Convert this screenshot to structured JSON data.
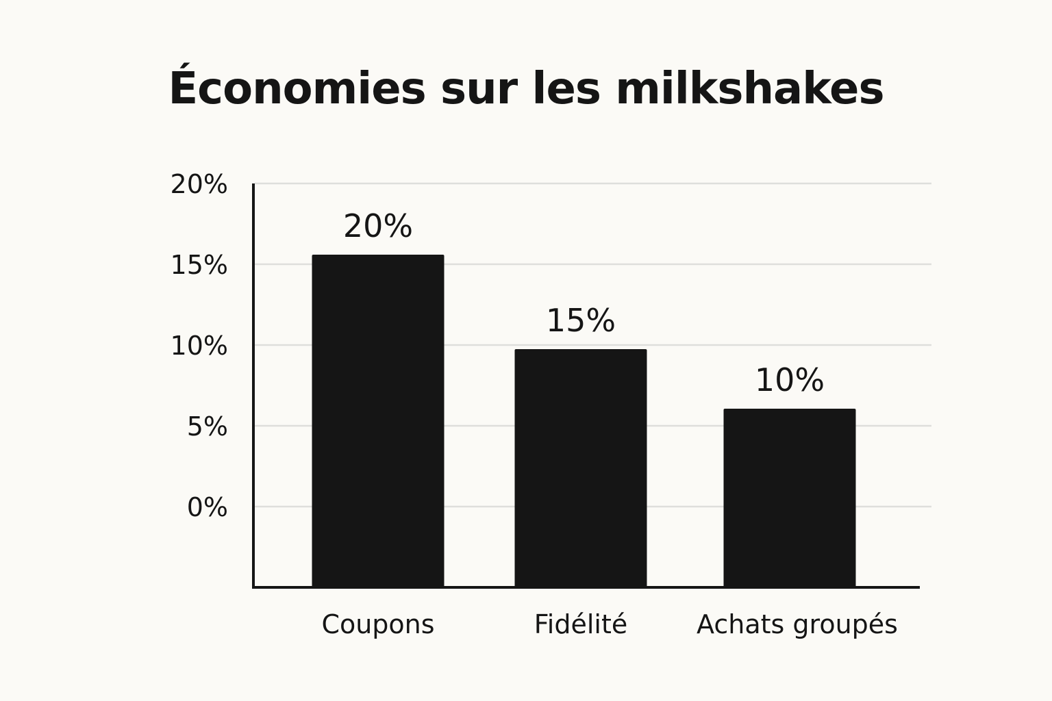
{
  "chart_data": {
    "type": "bar",
    "title": "Économies sur les milkshakes",
    "xlabel": "",
    "ylabel": "",
    "categories": [
      "Coupons",
      "Fidélité",
      "Achats groupés"
    ],
    "values": [
      20,
      15,
      10
    ],
    "value_labels": [
      "20%",
      "15%",
      "10%"
    ],
    "y_ticks": [
      "0%",
      "5%",
      "10%",
      "15%",
      "20%"
    ],
    "y_tick_values": [
      0,
      5,
      10,
      15,
      20
    ],
    "grid": true,
    "legend": "none",
    "colors": {
      "bar": "#151515",
      "grid": "#dededb",
      "axis": "#151515",
      "background": "#fbfaf6"
    }
  }
}
